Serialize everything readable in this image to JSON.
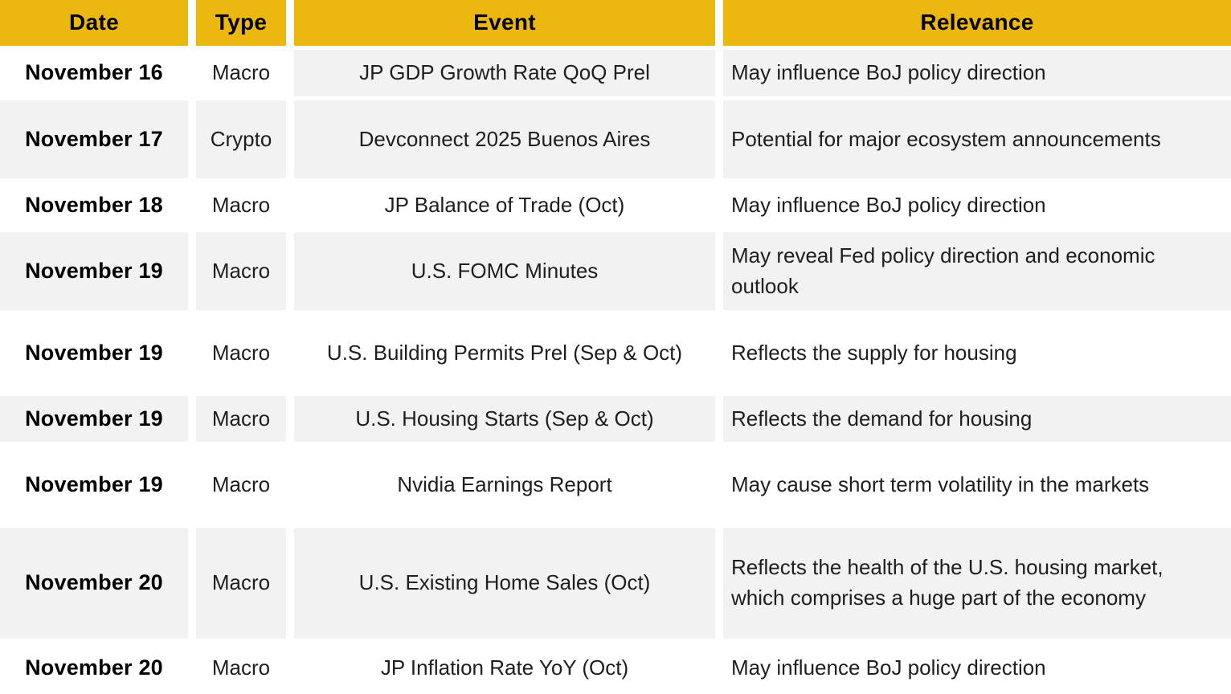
{
  "colors": {
    "header_bg": "#ECB70F",
    "stripe_bg": "#F2F2F2",
    "body_text": "#1E1E1E",
    "header_text": "#000000"
  },
  "chart_data": {
    "type": "table",
    "title": "",
    "columns": [
      "Date",
      "Type",
      "Event",
      "Relevance"
    ],
    "rows": [
      {
        "date": "November 16",
        "type": "Macro",
        "event": "JP GDP Growth Rate QoQ Prel",
        "relevance": "May influence BoJ policy direction"
      },
      {
        "date": "November 17",
        "type": "Crypto",
        "event": "Devconnect 2025 Buenos Aires",
        "relevance": "Potential for major ecosystem announcements"
      },
      {
        "date": "November 18",
        "type": "Macro",
        "event": "JP Balance of Trade (Oct)",
        "relevance": "May influence BoJ policy direction"
      },
      {
        "date": "November 19",
        "type": "Macro",
        "event": "U.S. FOMC Minutes",
        "relevance": "May reveal Fed policy direction and economic outlook"
      },
      {
        "date": "November 19",
        "type": "Macro",
        "event": "U.S. Building Permits Prel (Sep & Oct)",
        "relevance": "Reflects the supply for housing"
      },
      {
        "date": "November 19",
        "type": "Macro",
        "event": "U.S. Housing Starts (Sep & Oct)",
        "relevance": "Reflects the demand for housing"
      },
      {
        "date": "November 19",
        "type": "Macro",
        "event": "Nvidia Earnings Report",
        "relevance": "May cause short term volatility in the markets"
      },
      {
        "date": "November 20",
        "type": "Macro",
        "event": "U.S. Existing Home Sales (Oct)",
        "relevance": "Reflects the health of the U.S. housing market, which comprises a huge part of the economy"
      },
      {
        "date": "November 20",
        "type": "Macro",
        "event": "JP Inflation Rate YoY (Oct)",
        "relevance": "May influence BoJ policy direction"
      }
    ]
  }
}
